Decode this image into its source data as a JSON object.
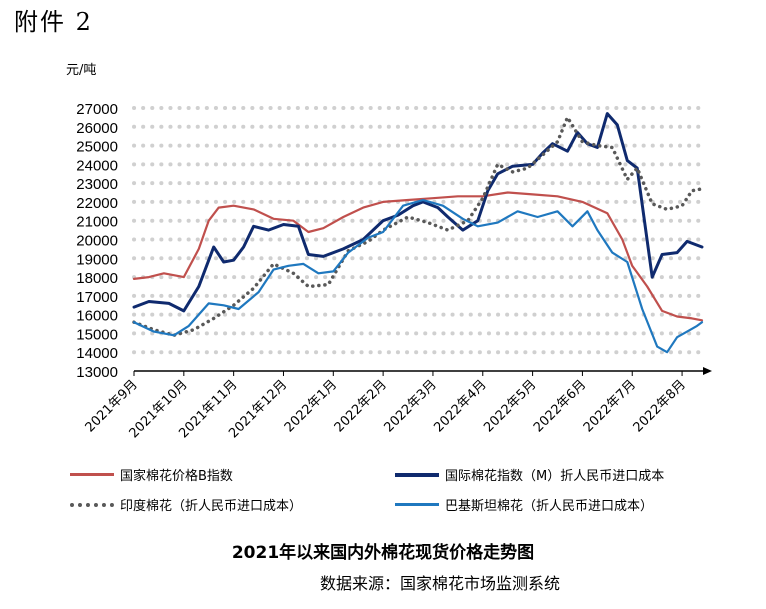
{
  "header": {
    "attachment_label": "附件 2"
  },
  "caption": "2021年以来国内外棉花现货价格走势图",
  "source": "数据来源：国家棉花市场监测系统",
  "chart_data": {
    "type": "line",
    "ylabel": "元/吨",
    "ylim": [
      13000,
      27000
    ],
    "yticks": [
      "13000",
      "14000",
      "15000",
      "16000",
      "17000",
      "18000",
      "19000",
      "20000",
      "21000",
      "22000",
      "23000",
      "24000",
      "25000",
      "26000",
      "27000"
    ],
    "x_tick_labels": [
      "2021年9月",
      "2021年10月",
      "2021年11月",
      "2021年12月",
      "2022年1月",
      "2022年2月",
      "2022年3月",
      "2022年4月",
      "2022年5月",
      "2022年6月",
      "2022年7月",
      "2022年8月"
    ],
    "grid": "horizontal dotted",
    "legend_position": "bottom",
    "series": [
      {
        "name": "国家棉花价格B指数",
        "color": "#c0504d",
        "style": "solid",
        "points": [
          [
            0,
            17900
          ],
          [
            0.3,
            18000
          ],
          [
            0.6,
            18200
          ],
          [
            1.0,
            18000
          ],
          [
            1.3,
            19500
          ],
          [
            1.5,
            21000
          ],
          [
            1.7,
            21700
          ],
          [
            2.0,
            21800
          ],
          [
            2.4,
            21600
          ],
          [
            2.8,
            21100
          ],
          [
            3.2,
            21000
          ],
          [
            3.5,
            20400
          ],
          [
            3.8,
            20600
          ],
          [
            4.2,
            21200
          ],
          [
            4.6,
            21700
          ],
          [
            5.0,
            22000
          ],
          [
            5.5,
            22100
          ],
          [
            6.0,
            22200
          ],
          [
            6.5,
            22300
          ],
          [
            7.0,
            22300
          ],
          [
            7.5,
            22500
          ],
          [
            8.0,
            22400
          ],
          [
            8.5,
            22300
          ],
          [
            9.0,
            22000
          ],
          [
            9.5,
            21400
          ],
          [
            9.8,
            20000
          ],
          [
            10.0,
            18600
          ],
          [
            10.3,
            17500
          ],
          [
            10.6,
            16200
          ],
          [
            10.9,
            15900
          ],
          [
            11.2,
            15800
          ],
          [
            11.4,
            15700
          ]
        ]
      },
      {
        "name": "国际棉花指数（M）折人民币进口成本",
        "color": "#0f2a6e",
        "style": "solid",
        "points": [
          [
            0,
            16400
          ],
          [
            0.3,
            16700
          ],
          [
            0.7,
            16600
          ],
          [
            1.0,
            16200
          ],
          [
            1.3,
            17500
          ],
          [
            1.6,
            19600
          ],
          [
            1.8,
            18800
          ],
          [
            2.0,
            18900
          ],
          [
            2.2,
            19600
          ],
          [
            2.4,
            20700
          ],
          [
            2.7,
            20500
          ],
          [
            3.0,
            20800
          ],
          [
            3.3,
            20700
          ],
          [
            3.5,
            19200
          ],
          [
            3.8,
            19100
          ],
          [
            4.2,
            19500
          ],
          [
            4.6,
            20000
          ],
          [
            5.0,
            21000
          ],
          [
            5.3,
            21300
          ],
          [
            5.6,
            21800
          ],
          [
            5.8,
            22000
          ],
          [
            6.1,
            21700
          ],
          [
            6.3,
            21200
          ],
          [
            6.6,
            20500
          ],
          [
            6.9,
            21000
          ],
          [
            7.1,
            22600
          ],
          [
            7.3,
            23500
          ],
          [
            7.6,
            23900
          ],
          [
            8.0,
            24000
          ],
          [
            8.2,
            24600
          ],
          [
            8.4,
            25100
          ],
          [
            8.7,
            24700
          ],
          [
            8.9,
            25700
          ],
          [
            9.1,
            25100
          ],
          [
            9.3,
            24900
          ],
          [
            9.5,
            26700
          ],
          [
            9.7,
            26100
          ],
          [
            9.9,
            24200
          ],
          [
            10.1,
            23800
          ],
          [
            10.4,
            18000
          ],
          [
            10.6,
            19200
          ],
          [
            10.9,
            19300
          ],
          [
            11.1,
            19900
          ],
          [
            11.3,
            19700
          ],
          [
            11.4,
            19600
          ]
        ]
      },
      {
        "name": "印度棉花（折人民币进口成本）",
        "color": "#595959",
        "style": "dotted",
        "points": [
          [
            0,
            15600
          ],
          [
            0.4,
            15200
          ],
          [
            0.8,
            14900
          ],
          [
            1.2,
            15200
          ],
          [
            1.6,
            15800
          ],
          [
            2.0,
            16500
          ],
          [
            2.4,
            17400
          ],
          [
            2.8,
            18700
          ],
          [
            3.2,
            18200
          ],
          [
            3.5,
            17500
          ],
          [
            3.9,
            17600
          ],
          [
            4.3,
            19400
          ],
          [
            4.7,
            19900
          ],
          [
            5.0,
            20500
          ],
          [
            5.5,
            21200
          ],
          [
            5.9,
            20900
          ],
          [
            6.3,
            20500
          ],
          [
            6.7,
            21000
          ],
          [
            7.0,
            22200
          ],
          [
            7.3,
            24000
          ],
          [
            7.6,
            23600
          ],
          [
            7.9,
            23800
          ],
          [
            8.2,
            24500
          ],
          [
            8.5,
            25200
          ],
          [
            8.7,
            26500
          ],
          [
            9.0,
            25200
          ],
          [
            9.3,
            25000
          ],
          [
            9.6,
            24900
          ],
          [
            9.9,
            23200
          ],
          [
            10.1,
            23800
          ],
          [
            10.4,
            21900
          ],
          [
            10.7,
            21600
          ],
          [
            11.0,
            21800
          ],
          [
            11.2,
            22600
          ],
          [
            11.4,
            22700
          ]
        ]
      },
      {
        "name": "巴基斯坦棉花（折人民币进口成本）",
        "color": "#1f78bf",
        "style": "solid",
        "points": [
          [
            0,
            15600
          ],
          [
            0.4,
            15100
          ],
          [
            0.8,
            14900
          ],
          [
            1.1,
            15400
          ],
          [
            1.5,
            16600
          ],
          [
            1.8,
            16500
          ],
          [
            2.1,
            16300
          ],
          [
            2.5,
            17200
          ],
          [
            2.8,
            18400
          ],
          [
            3.1,
            18600
          ],
          [
            3.4,
            18700
          ],
          [
            3.7,
            18200
          ],
          [
            4.0,
            18300
          ],
          [
            4.3,
            19300
          ],
          [
            4.7,
            20100
          ],
          [
            5.0,
            20400
          ],
          [
            5.4,
            21800
          ],
          [
            5.8,
            22100
          ],
          [
            6.2,
            21800
          ],
          [
            6.6,
            21100
          ],
          [
            6.9,
            20700
          ],
          [
            7.3,
            20900
          ],
          [
            7.7,
            21500
          ],
          [
            8.1,
            21200
          ],
          [
            8.5,
            21500
          ],
          [
            8.8,
            20700
          ],
          [
            9.1,
            21500
          ],
          [
            9.3,
            20500
          ],
          [
            9.6,
            19300
          ],
          [
            9.9,
            18800
          ],
          [
            10.2,
            16300
          ],
          [
            10.5,
            14300
          ],
          [
            10.7,
            14000
          ],
          [
            10.9,
            14800
          ],
          [
            11.1,
            15100
          ],
          [
            11.3,
            15400
          ],
          [
            11.4,
            15600
          ]
        ]
      }
    ]
  }
}
